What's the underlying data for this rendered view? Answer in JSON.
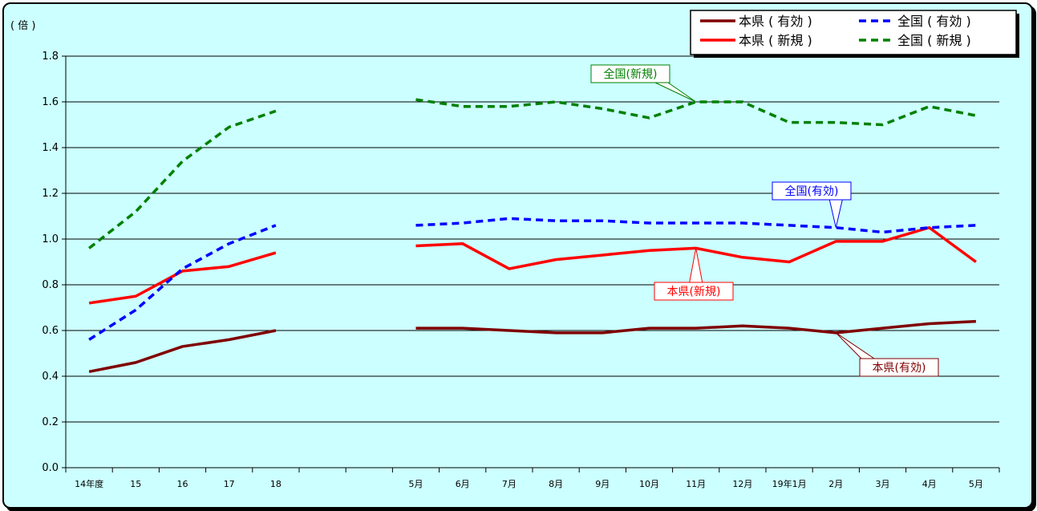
{
  "chart_data": {
    "type": "line",
    "unit_label": "( 倍 )",
    "ylim": [
      0,
      1.8
    ],
    "y_ticks": [
      "0.0",
      "0.2",
      "0.4",
      "0.6",
      "0.8",
      "1.0",
      "1.2",
      "1.4",
      "1.6",
      "1.8"
    ],
    "grid": true,
    "legend_position": "top-right",
    "categories": [
      "14年度",
      "15",
      "16",
      "17",
      "18",
      "",
      "",
      "5月",
      "6月",
      "7月",
      "8月",
      "9月",
      "10月",
      "11月",
      "12月",
      "19年1月",
      "2月",
      "3月",
      "4月",
      "5月"
    ],
    "series": [
      {
        "name": "本県 ( 有効 )",
        "legend_label": "本県 ( 有効 )",
        "annotation": "本県(有効)",
        "color": "#800000",
        "style": "solid",
        "values": [
          0.42,
          0.46,
          0.53,
          0.56,
          0.6,
          null,
          null,
          0.61,
          0.61,
          0.6,
          0.59,
          0.59,
          0.61,
          0.61,
          0.62,
          0.61,
          0.59,
          0.61,
          0.63,
          0.64
        ]
      },
      {
        "name": "本県 ( 新規 )",
        "legend_label": "本県 ( 新規 )",
        "annotation": "本県(新規)",
        "color": "#ff0000",
        "style": "solid",
        "values": [
          0.72,
          0.75,
          0.86,
          0.88,
          0.94,
          null,
          null,
          0.97,
          0.98,
          0.87,
          0.91,
          0.93,
          0.95,
          0.96,
          0.92,
          0.9,
          0.99,
          0.99,
          1.05,
          0.9
        ]
      },
      {
        "name": "全国 ( 有効 )",
        "legend_label": "全国 ( 有効 )",
        "annotation": "全国(有効)",
        "color": "#0000ff",
        "style": "dashed",
        "values": [
          0.56,
          0.69,
          0.87,
          0.98,
          1.06,
          null,
          null,
          1.06,
          1.07,
          1.09,
          1.08,
          1.08,
          1.07,
          1.07,
          1.07,
          1.06,
          1.05,
          1.03,
          1.05,
          1.06
        ]
      },
      {
        "name": "全国 ( 新規 )",
        "legend_label": "全国 ( 新規 )",
        "annotation": "全国(新規)",
        "color": "#008000",
        "style": "dashed",
        "values": [
          0.96,
          1.12,
          1.34,
          1.49,
          1.56,
          null,
          null,
          1.61,
          1.58,
          1.58,
          1.6,
          1.57,
          1.53,
          1.6,
          1.6,
          1.51,
          1.51,
          1.5,
          1.58,
          1.54
        ]
      }
    ]
  }
}
